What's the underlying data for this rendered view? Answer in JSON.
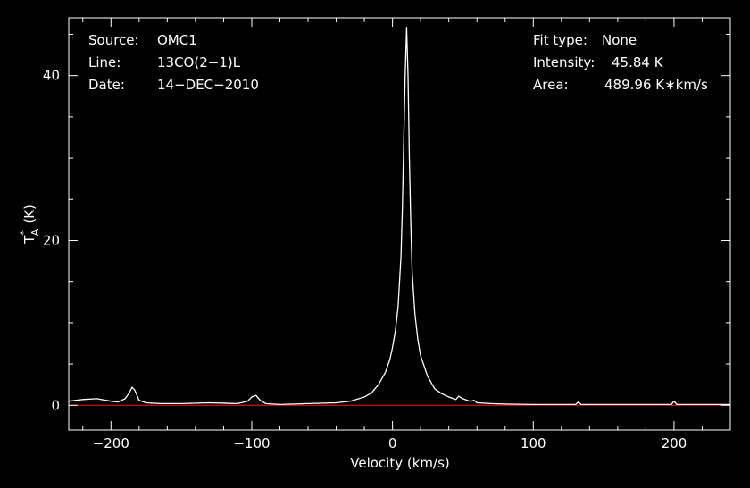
{
  "chart_data": {
    "type": "line",
    "xlabel": "Velocity (km/s)",
    "ylabel": "T",
    "ylabel_sub": "A",
    "ylabel_sup": "*",
    "ylabel_unit": "(K)",
    "xlim": [
      -230,
      240
    ],
    "ylim": [
      -3,
      47
    ],
    "x_ticks": [
      -200,
      -100,
      0,
      100,
      200
    ],
    "x_tick_labels": [
      "−200",
      "−100",
      "0",
      "100",
      "200"
    ],
    "y_ticks": [
      0,
      20,
      40
    ],
    "y_tick_labels": [
      "0",
      "20",
      "40"
    ],
    "grid": false,
    "baseline": {
      "y": 0,
      "color": "#ff0000"
    },
    "series": [
      {
        "color": "#ffffff",
        "x": [
          -230,
          -220,
          -210,
          -200,
          -195,
          -190,
          -187,
          -185,
          -183,
          -180,
          -175,
          -165,
          -150,
          -130,
          -110,
          -103,
          -100,
          -97,
          -94,
          -90,
          -80,
          -60,
          -40,
          -30,
          -20,
          -15,
          -10,
          -5,
          -2,
          0,
          2,
          4,
          6,
          7,
          8,
          9,
          10,
          11,
          12,
          13,
          14,
          16,
          18,
          20,
          25,
          30,
          35,
          40,
          45,
          47,
          50,
          55,
          58,
          60,
          70,
          80,
          100,
          120,
          130,
          132,
          134,
          140,
          160,
          180,
          198,
          200,
          202,
          220,
          240
        ],
        "y": [
          0.5,
          0.7,
          0.8,
          0.5,
          0.4,
          0.8,
          1.5,
          2.2,
          1.8,
          0.6,
          0.3,
          0.2,
          0.2,
          0.3,
          0.2,
          0.5,
          1.0,
          1.2,
          0.6,
          0.2,
          0.1,
          0.2,
          0.3,
          0.5,
          1.0,
          1.5,
          2.5,
          4.0,
          5.5,
          7.0,
          9.0,
          12.0,
          18.0,
          24.0,
          32.0,
          40.0,
          45.84,
          40.0,
          30.0,
          22.0,
          16.0,
          11.0,
          8.0,
          6.0,
          3.5,
          2.0,
          1.4,
          1.0,
          0.7,
          1.1,
          0.8,
          0.5,
          0.6,
          0.3,
          0.2,
          0.15,
          0.1,
          0.1,
          0.1,
          0.4,
          0.1,
          0.1,
          0.1,
          0.1,
          0.1,
          0.5,
          0.1,
          0.1,
          0.1
        ]
      }
    ]
  },
  "annotations": {
    "left": [
      {
        "label": "Source:",
        "value": "OMC1"
      },
      {
        "label": "Line:",
        "value": "13CO(2−1)L"
      },
      {
        "label": "Date:",
        "value": "14−DEC−2010"
      }
    ],
    "right": [
      {
        "label": "Fit type:",
        "value": "None"
      },
      {
        "label": "Intensity:",
        "value": "45.84 K"
      },
      {
        "label": "Area:",
        "value": "489.96 K∗km/s"
      }
    ]
  }
}
